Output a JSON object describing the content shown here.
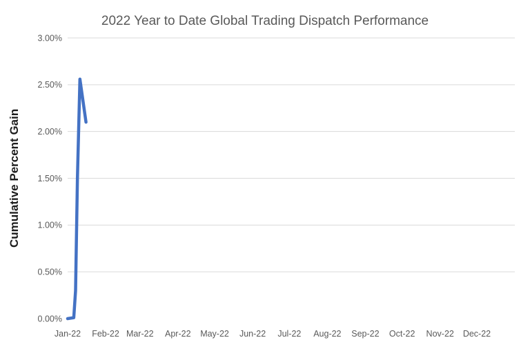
{
  "chart": {
    "title": "2022 Year to Date Global Trading Dispatch Performance",
    "y_axis_title": "Cumulative Percent Gain",
    "colors": {
      "title": "#595959",
      "axis_labels": "#595959",
      "y_axis_title": "#1c1c1c",
      "gridline": "#d9d9d9",
      "series_line": "#4472c4",
      "background": "#ffffff"
    }
  },
  "chart_data": {
    "type": "line",
    "title": "2022 Year to Date Global Trading Dispatch Performance",
    "xlabel": "",
    "ylabel": "Cumulative Percent Gain",
    "x_tick_labels": [
      "Jan-22",
      "Feb-22",
      "Mar-22",
      "Apr-22",
      "May-22",
      "Jun-22",
      "Jul-22",
      "Aug-22",
      "Sep-22",
      "Oct-22",
      "Nov-22",
      "Dec-22"
    ],
    "x_tick_day_offsets": [
      0,
      31,
      59,
      90,
      120,
      151,
      181,
      212,
      243,
      273,
      304,
      334
    ],
    "x_axis_span_days": 365,
    "y_tick_labels": [
      "0.00%",
      "0.50%",
      "1.00%",
      "1.50%",
      "2.00%",
      "2.50%",
      "3.00%"
    ],
    "y_tick_values": [
      0,
      0.5,
      1.0,
      1.5,
      2.0,
      2.5,
      3.0
    ],
    "ylim": [
      0,
      3
    ],
    "grid": {
      "horizontal": true,
      "vertical": false,
      "zero_line": false
    },
    "legend": "none",
    "series": [
      {
        "name": "Cumulative Percent Gain",
        "color": "#4472c4",
        "stroke_width": 4.5,
        "points": [
          {
            "day": 0,
            "pct": 0.0
          },
          {
            "day": 5,
            "pct": 0.01
          },
          {
            "day": 6.5,
            "pct": 0.3
          },
          {
            "day": 8,
            "pct": 1.5
          },
          {
            "day": 10,
            "pct": 2.56
          },
          {
            "day": 15,
            "pct": 2.1
          }
        ]
      }
    ]
  }
}
